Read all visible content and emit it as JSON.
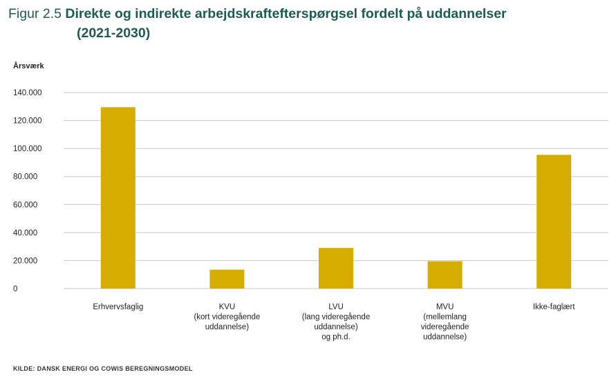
{
  "title": {
    "prefix": "Figur 2.5",
    "main": "Direkte og indirekte arbejdskraftefterspørgsel fordelt på uddannelser",
    "line2": "(2021-2030)"
  },
  "source": "KILDE: DANSK ENERGI OG COWIS BEREGNINGSMODEL",
  "chart_data": {
    "type": "bar",
    "title": "Direkte og indirekte arbejdskraftefterspørgsel fordelt på uddannelser (2021-2030)",
    "ylabel": "Årsværk",
    "xlabel": "",
    "ylim": [
      0,
      140000
    ],
    "yticks": [
      0,
      20000,
      40000,
      60000,
      80000,
      100000,
      120000,
      140000
    ],
    "ytick_labels": [
      "0",
      "20.000",
      "40.000",
      "60.000",
      "80.000",
      "100.000",
      "120.000",
      "140.000"
    ],
    "grid": true,
    "legend": "none",
    "bar_color": "#d4ad00",
    "categories": [
      [
        "Erhvervsfaglig"
      ],
      [
        "KVU",
        "(kort videregående",
        "uddannelse)"
      ],
      [
        "LVU",
        "(lang videregående",
        "uddannelse)",
        "og ph.d."
      ],
      [
        "MVU",
        "(mellemlang",
        "videregående",
        "uddannelse)"
      ],
      [
        "Ikke-faglært"
      ]
    ],
    "values": [
      129500,
      13500,
      29000,
      19500,
      95500
    ]
  }
}
